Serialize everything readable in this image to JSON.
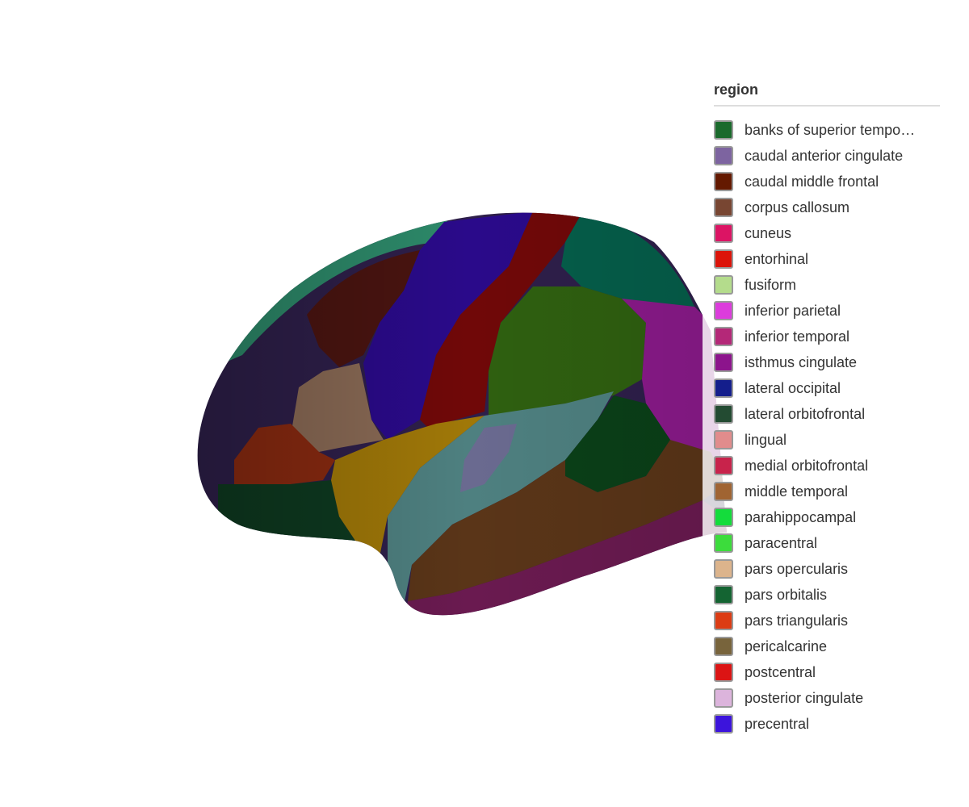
{
  "legend": {
    "title": "region",
    "items": [
      {
        "label": "banks of superior tempo…",
        "color": "#1a6a2c"
      },
      {
        "label": "caudal anterior cingulate",
        "color": "#7d64a0"
      },
      {
        "label": "caudal middle frontal",
        "color": "#641900"
      },
      {
        "label": "corpus callosum",
        "color": "#784632"
      },
      {
        "label": "cuneus",
        "color": "#dc1464"
      },
      {
        "label": "entorhinal",
        "color": "#dc140a"
      },
      {
        "label": "fusiform",
        "color": "#b4dc8c"
      },
      {
        "label": "inferior parietal",
        "color": "#dc3cdc"
      },
      {
        "label": "inferior temporal",
        "color": "#b42878"
      },
      {
        "label": "isthmus cingulate",
        "color": "#8c148c"
      },
      {
        "label": "lateral occipital",
        "color": "#141e8c"
      },
      {
        "label": "lateral orbitofrontal",
        "color": "#234b32"
      },
      {
        "label": "lingual",
        "color": "#e18c8c"
      },
      {
        "label": "medial orbitofrontal",
        "color": "#c8234b"
      },
      {
        "label": "middle temporal",
        "color": "#a06432"
      },
      {
        "label": "parahippocampal",
        "color": "#14dc3c"
      },
      {
        "label": "paracentral",
        "color": "#3cdc3c"
      },
      {
        "label": "pars opercularis",
        "color": "#dcb48c"
      },
      {
        "label": "pars orbitalis",
        "color": "#146432"
      },
      {
        "label": "pars triangularis",
        "color": "#dc3c14"
      },
      {
        "label": "pericalcarine",
        "color": "#78643c"
      },
      {
        "label": "postcentral",
        "color": "#dc1414"
      },
      {
        "label": "posterior cingulate",
        "color": "#dcb4dc"
      },
      {
        "label": "precentral",
        "color": "#3c14dc"
      },
      {
        "label": "",
        "color": "#a0a0a0"
      }
    ]
  }
}
